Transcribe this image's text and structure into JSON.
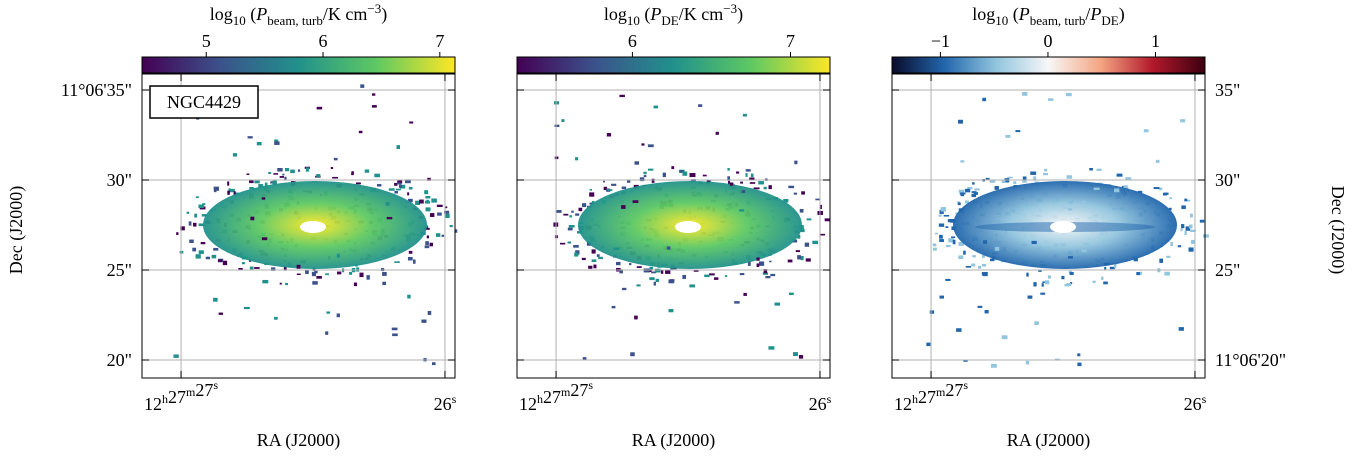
{
  "chart_data": [
    {
      "type": "map",
      "annotation": "NGC4429",
      "colorbar": {
        "label": [
          {
            "text": "log"
          },
          {
            "text": "10",
            "sub": true
          },
          {
            "text": " ("
          },
          {
            "text": "P",
            "italic": true
          },
          {
            "text": "beam, turb",
            "sub": true
          },
          {
            "text": "/K cm"
          },
          {
            "text": "−3",
            "sup": true
          },
          {
            "text": ")"
          }
        ],
        "lim": [
          4.45,
          7.13
        ],
        "ticks": [
          5,
          6,
          7
        ],
        "colormap": [
          "#440154",
          "#3b528b",
          "#21918c",
          "#5ec962",
          "#fde725"
        ]
      },
      "xlabel": "RA (J2000)",
      "ylabel": "Dec (J2000)",
      "xlim": [
        27.148,
        25.962
      ],
      "xticks": [
        {
          "value": 27,
          "label": "12h27m27s"
        },
        {
          "value": 26,
          "label": "26s"
        }
      ],
      "ylim": [
        19.0,
        35.89
      ],
      "yticks": [
        {
          "value": 35,
          "label": "11°06'35\""
        },
        {
          "value": 30,
          "label": "30\""
        },
        {
          "value": 25,
          "label": "25\""
        },
        {
          "value": 20,
          "label": "20\""
        }
      ],
      "ytick_side": "left",
      "grid": true
    },
    {
      "type": "map",
      "colorbar": {
        "label": [
          {
            "text": "log"
          },
          {
            "text": "10",
            "sub": true
          },
          {
            "text": " ("
          },
          {
            "text": "P",
            "italic": true
          },
          {
            "text": "DE",
            "sub": true
          },
          {
            "text": "/K cm"
          },
          {
            "text": "−3",
            "sup": true
          },
          {
            "text": ")"
          }
        ],
        "lim": [
          5.27,
          7.25
        ],
        "ticks": [
          6,
          7
        ],
        "colormap": [
          "#440154",
          "#3b528b",
          "#21918c",
          "#5ec962",
          "#fde725"
        ]
      },
      "xlabel": "RA (J2000)",
      "xlim": [
        27.148,
        25.962
      ],
      "xticks": [
        {
          "value": 27,
          "label": "12h27m27s"
        },
        {
          "value": 26,
          "label": "26s"
        }
      ],
      "ylim": [
        19.0,
        35.89
      ],
      "yticks": [
        35,
        30,
        25,
        20
      ],
      "show_ytick_labels": false,
      "grid": true
    },
    {
      "type": "map",
      "colorbar": {
        "label": [
          {
            "text": "log"
          },
          {
            "text": "10",
            "sub": true
          },
          {
            "text": " ("
          },
          {
            "text": "P",
            "italic": true
          },
          {
            "text": "beam, turb",
            "sub": true
          },
          {
            "text": "/"
          },
          {
            "text": "P",
            "italic": true
          },
          {
            "text": "DE",
            "sub": true
          },
          {
            "text": ")"
          }
        ],
        "lim": [
          -1.45,
          1.46
        ],
        "ticks": [
          {
            "value": -1,
            "label": "−1"
          },
          0,
          1
        ],
        "colormap": [
          "#0a0a2a",
          "#2166ac",
          "#92c5de",
          "#f7f7f7",
          "#f4a582",
          "#b2182b",
          "#3b0010"
        ]
      },
      "xlabel": "RA (J2000)",
      "ylabel": "Dec (J2000)",
      "xlim": [
        27.148,
        25.962
      ],
      "xticks": [
        {
          "value": 27,
          "label": "12h27m27s"
        },
        {
          "value": 26,
          "label": "26s"
        }
      ],
      "ylim": [
        19.0,
        35.89
      ],
      "yticks": [
        {
          "value": 35,
          "label": "35\""
        },
        {
          "value": 30,
          "label": "30\""
        },
        {
          "value": 25,
          "label": "25\""
        },
        {
          "value": 20,
          "label": "11°06'20\""
        }
      ],
      "ytick_side": "right",
      "grid": true
    }
  ]
}
